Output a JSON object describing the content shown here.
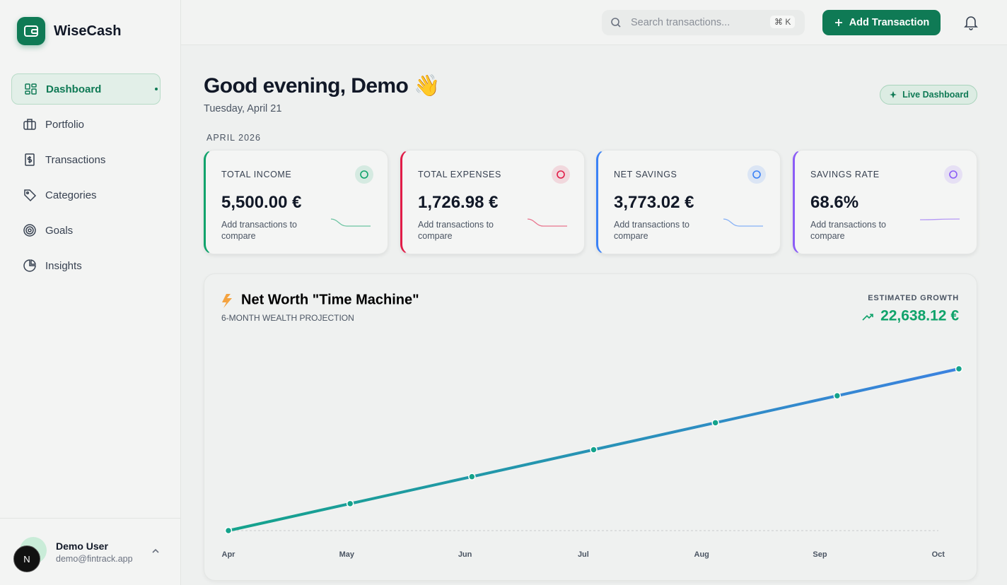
{
  "sidebar": {
    "brand": "WiseCash",
    "nav": [
      "Dashboard",
      "Portfolio",
      "Transactions",
      "Categories",
      "Goals",
      "Insights"
    ],
    "user": {
      "avatar": "N",
      "name": "Demo User",
      "email": "demo@fintrack.app"
    }
  },
  "header": {
    "search_placeholder": "Search transactions...",
    "shortcut": "⌘ K",
    "button": "Add Transaction"
  },
  "greeting": {
    "title": "Good evening, Demo 👋",
    "date": "Tuesday, April 21",
    "badge": "Live Dashboard"
  },
  "period": "APRIL 2026",
  "cards": [
    {
      "label": "TOTAL INCOME",
      "value": "5,500.00 €",
      "note": "Add transactions to compare",
      "color": "#10a36b"
    },
    {
      "label": "TOTAL EXPENSES",
      "value": "1,726.98 €",
      "note": "Add transactions to compare",
      "color": "#e11d48"
    },
    {
      "label": "NET SAVINGS",
      "value": "3,773.02 €",
      "note": "Add transactions to compare",
      "color": "#3b82f6"
    },
    {
      "label": "SAVINGS RATE",
      "value": "68.6%",
      "note": "Add transactions to compare",
      "color": "#8b5cf6"
    }
  ],
  "chart_data": {
    "type": "line",
    "title": "Net Worth \"Time Machine\"",
    "subtitle": "6-MONTH WEALTH PROJECTION",
    "growth_label": "ESTIMATED GROWTH",
    "growth_value": "22,638.12 €",
    "categories": [
      "Apr",
      "May",
      "Jun",
      "Jul",
      "Aug",
      "Sep",
      "Oct"
    ],
    "series": [
      {
        "color": "#14a38b",
        "values": [
          3773.02,
          7546.04,
          11319.06,
          15092.08,
          18865.1,
          22638.12,
          26411.14
        ]
      }
    ]
  }
}
